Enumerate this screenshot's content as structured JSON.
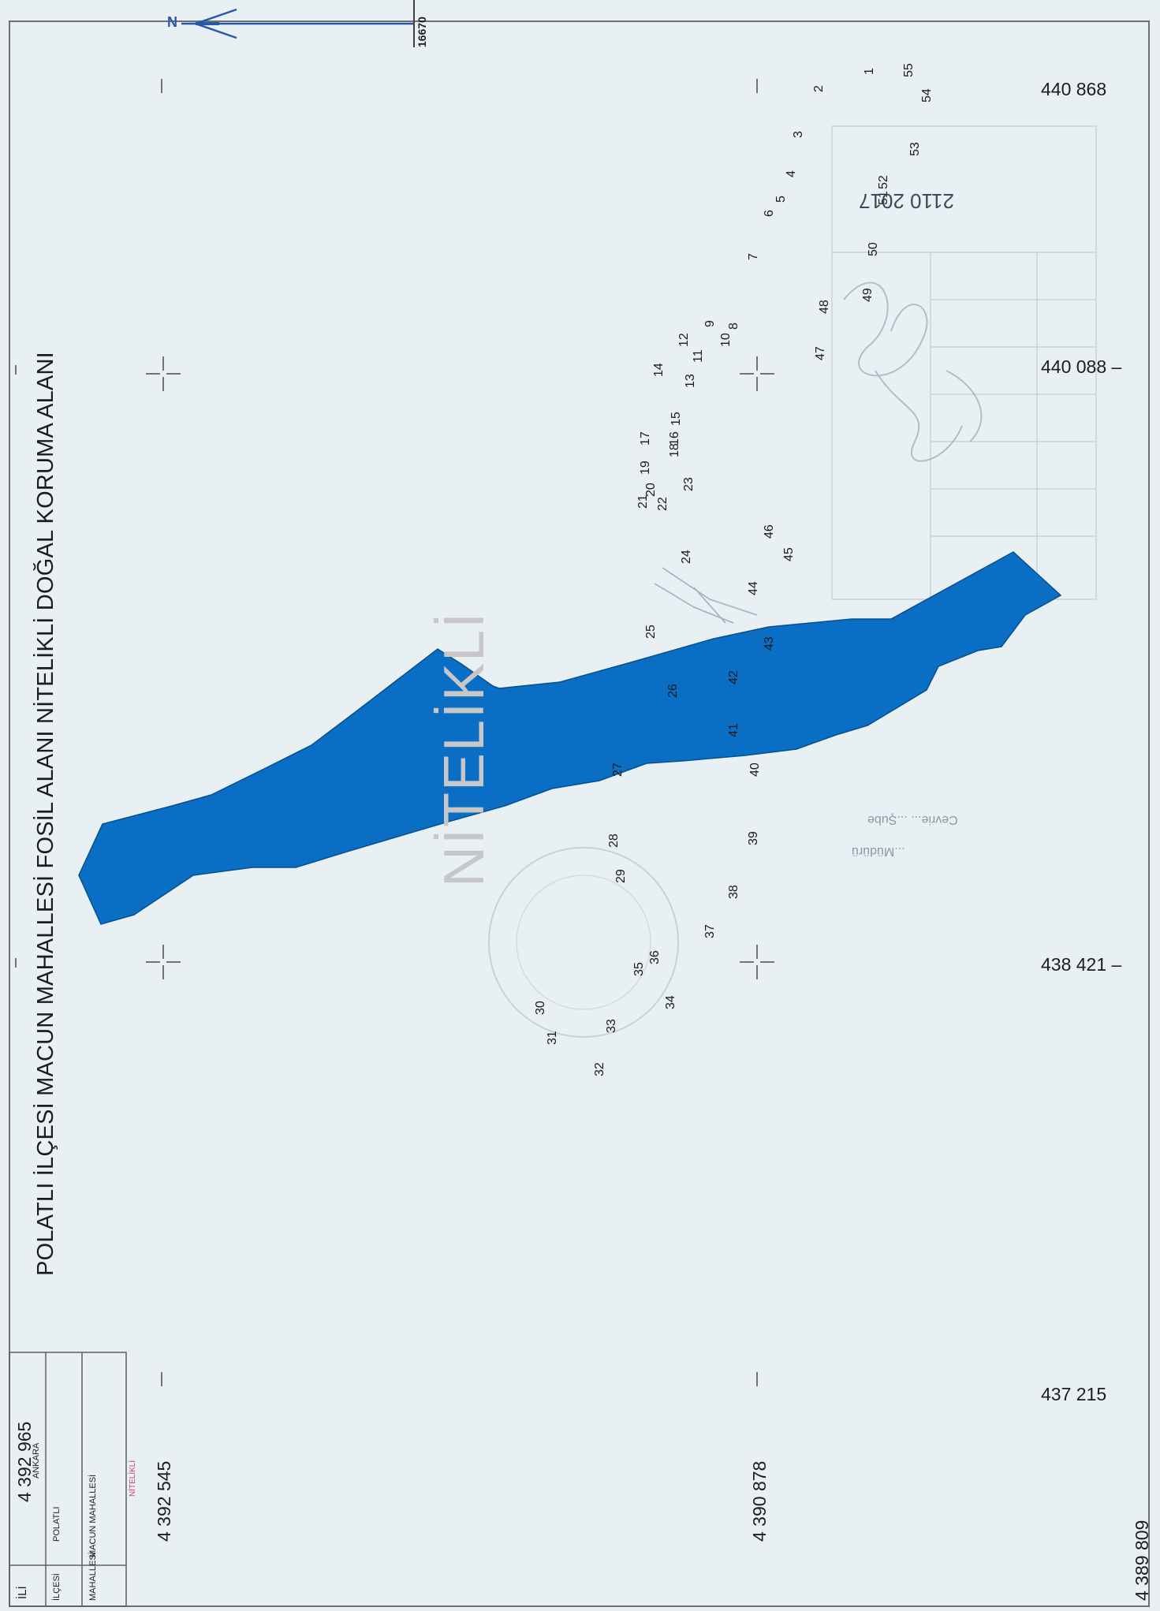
{
  "title": "POLATLI  İLÇESİ MACUN MAHALLESİ FOSİL ALANI  NİTELİKLİ DOĞAL KORUMA ALANI",
  "north_label": "N",
  "sheet_number": "16670",
  "watermark": "NİTELİKLİ",
  "coords": {
    "right_top": "440 868",
    "right_mid": "440 088 –",
    "right_low": "438 421 –",
    "right_bottom": "437 215",
    "bottom_1": "4 392 545",
    "bottom_2": "4 390 878",
    "bottom_3": "4 389 809",
    "legend_top": "4 392 965"
  },
  "legend": {
    "il_label": "İLİ",
    "il_value": "ANKARA",
    "ilce_label": "İLÇESİ",
    "ilce_value": "POLATLI",
    "mahalle_label": "MAHALLESİ",
    "mahalle_value": "MACUN MAHALLESİ",
    "category": "NİTELİKLİ"
  },
  "stamp": {
    "date_text": "2110 2017",
    "name_line1": "Cevrie... ...Şube",
    "name_line2": "...Müdürü"
  },
  "colors": {
    "area_fill": "#0a6fc4",
    "north_arrow": "#2050a0",
    "background": "#e8f0f4"
  },
  "boundary_points": [
    "1",
    "2",
    "3",
    "4",
    "5",
    "6",
    "7",
    "8",
    "9",
    "10",
    "11",
    "12",
    "13",
    "14",
    "15",
    "16",
    "17",
    "18",
    "19",
    "20",
    "21",
    "22",
    "23",
    "24",
    "25",
    "26",
    "27",
    "28",
    "29",
    "30",
    "31",
    "32",
    "33",
    "34",
    "35",
    "36",
    "37",
    "38",
    "39",
    "40",
    "41",
    "42",
    "43",
    "44",
    "45",
    "46",
    "47",
    "48",
    "49",
    "50",
    "51",
    "52",
    "53",
    "54",
    "55"
  ]
}
